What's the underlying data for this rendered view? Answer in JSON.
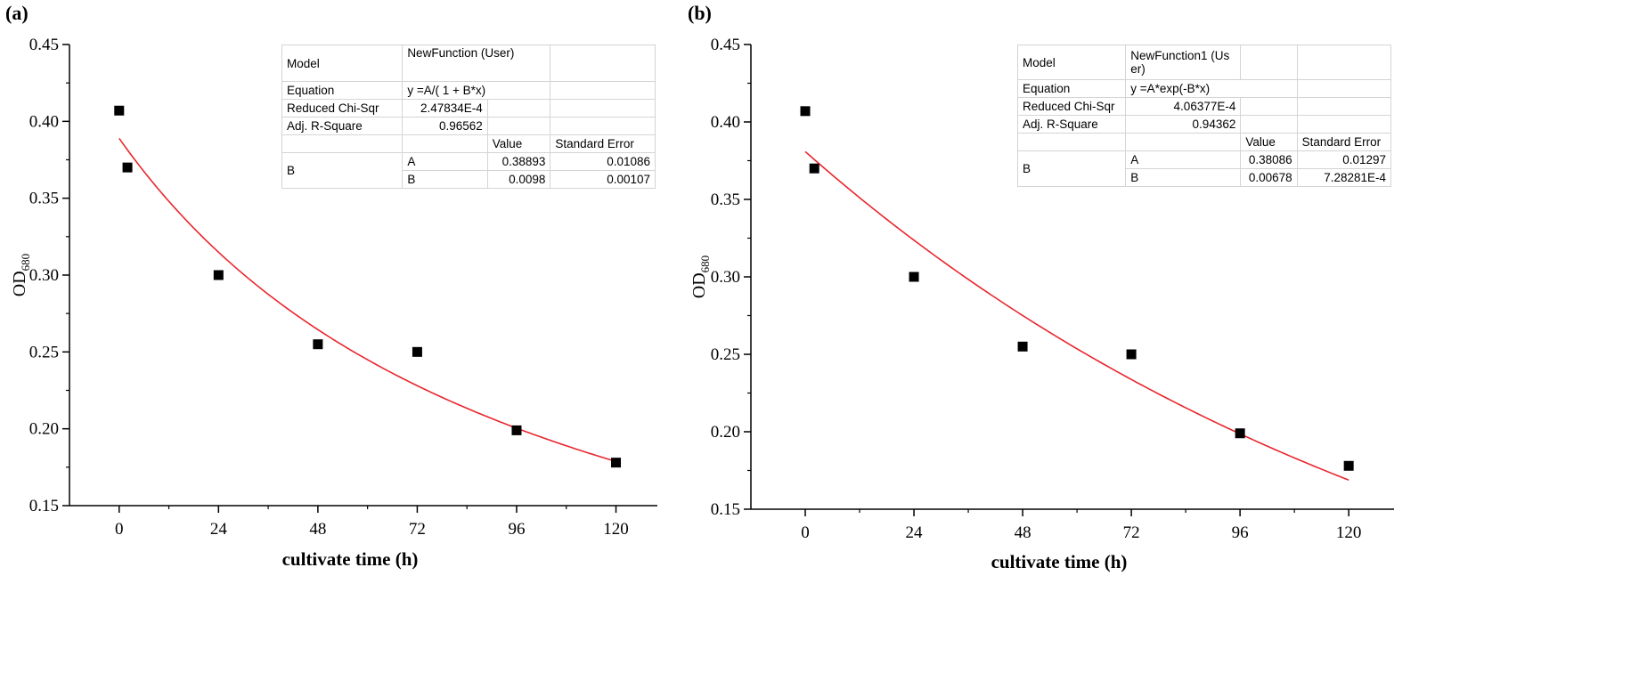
{
  "chart_data": [
    {
      "type": "scatter",
      "panel_label": "(a)",
      "xlabel": "cultivate time (h)",
      "ylabel": "OD",
      "ylabel_sub": "680",
      "xlim": [
        -12,
        130
      ],
      "ylim": [
        0.15,
        0.45
      ],
      "x_ticks": [
        0,
        24,
        48,
        72,
        96,
        120
      ],
      "y_ticks": [
        0.15,
        0.2,
        0.25,
        0.3,
        0.35,
        0.4,
        0.45
      ],
      "y_tick_labels": [
        "0.15",
        "0.20",
        "0.25",
        "0.30",
        "0.35",
        "0.40",
        "0.45"
      ],
      "points": {
        "x": [
          0,
          2,
          24,
          48,
          72,
          96,
          120
        ],
        "y": [
          0.407,
          0.37,
          0.3,
          0.255,
          0.25,
          0.199,
          0.178
        ]
      },
      "fit": {
        "model": "A/(1+B*x)",
        "A": 0.38893,
        "B": 0.0098,
        "color": "#e8262d"
      },
      "table": {
        "model_label": "Model",
        "model_value": "NewFunction (User)",
        "equation_label": "Equation",
        "equation_value": "y =A/( 1 + B*x)",
        "chisq_label": "Reduced Chi-Sqr",
        "chisq_value": "2.47834E-4",
        "r2_label": "Adj. R-Square",
        "r2_value": "0.96562",
        "value_header": "Value",
        "stderr_header": "Standard Error",
        "group_label": "B",
        "params": [
          {
            "name": "A",
            "value": "0.38893",
            "stderr": "0.01086"
          },
          {
            "name": "B",
            "value": "0.0098",
            "stderr": "0.00107"
          }
        ]
      }
    },
    {
      "type": "scatter",
      "panel_label": "(b)",
      "xlabel": "cultivate time (h)",
      "ylabel": "OD",
      "ylabel_sub": "680",
      "xlim": [
        -12,
        130
      ],
      "ylim": [
        0.15,
        0.45
      ],
      "x_ticks": [
        0,
        24,
        48,
        72,
        96,
        120
      ],
      "y_ticks": [
        0.15,
        0.2,
        0.25,
        0.3,
        0.35,
        0.4,
        0.45
      ],
      "y_tick_labels": [
        "0.15",
        "0.20",
        "0.25",
        "0.30",
        "0.35",
        "0.40",
        "0.45"
      ],
      "points": {
        "x": [
          0,
          2,
          24,
          48,
          72,
          96,
          120
        ],
        "y": [
          0.407,
          0.37,
          0.3,
          0.255,
          0.25,
          0.199,
          0.178
        ]
      },
      "fit": {
        "model": "A*exp(-B*x)",
        "A": 0.38086,
        "B": 0.00678,
        "color": "#e8262d"
      },
      "table": {
        "model_label": "Model",
        "model_value_line1": "NewFunction1 (Us",
        "model_value_line2": "er)",
        "equation_label": "Equation",
        "equation_value": "y =A*exp(-B*x)",
        "chisq_label": "Reduced Chi-Sqr",
        "chisq_value": "4.06377E-4",
        "r2_label": "Adj. R-Square",
        "r2_value": "0.94362",
        "value_header": "Value",
        "stderr_header": "Standard Error",
        "group_label": "B",
        "params": [
          {
            "name": "A",
            "value": "0.38086",
            "stderr": "0.01297"
          },
          {
            "name": "B",
            "value": "0.00678",
            "stderr": "7.28281E-4"
          }
        ]
      }
    }
  ]
}
